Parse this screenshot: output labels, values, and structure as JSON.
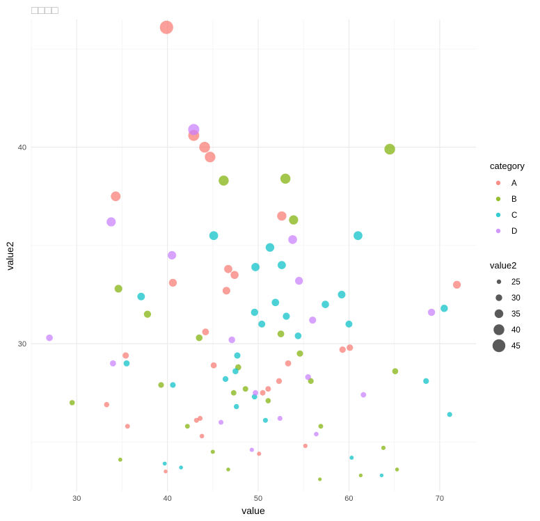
{
  "chart_data": {
    "type": "scatter",
    "title": "□□□□",
    "xlabel": "value",
    "ylabel": "value2",
    "xlim": [
      25,
      74
    ],
    "ylim": [
      22.5,
      46.5
    ],
    "x_ticks": [
      30,
      40,
      50,
      60,
      70
    ],
    "y_ticks": [
      30,
      40
    ],
    "grid": true,
    "legend_position": "right",
    "colors": {
      "A": "#F8766D",
      "B": "#7CAE00",
      "C": "#00BFC4",
      "D": "#C77CFF"
    },
    "color_legend": {
      "title": "category",
      "entries": [
        "A",
        "B",
        "C",
        "D"
      ]
    },
    "size_legend": {
      "title": "value2",
      "entries": [
        25,
        30,
        35,
        40,
        45
      ]
    },
    "series": [
      {
        "name": "A",
        "points": [
          {
            "x": 39.9,
            "y": 46.1
          },
          {
            "x": 42.9,
            "y": 40.6
          },
          {
            "x": 44.1,
            "y": 40.0
          },
          {
            "x": 44.7,
            "y": 39.5
          },
          {
            "x": 34.3,
            "y": 37.5
          },
          {
            "x": 52.6,
            "y": 36.5
          },
          {
            "x": 46.7,
            "y": 33.8
          },
          {
            "x": 47.4,
            "y": 33.5
          },
          {
            "x": 40.6,
            "y": 33.1
          },
          {
            "x": 46.5,
            "y": 32.7
          },
          {
            "x": 71.9,
            "y": 33.0
          },
          {
            "x": 44.2,
            "y": 30.6
          },
          {
            "x": 35.4,
            "y": 29.4
          },
          {
            "x": 45.1,
            "y": 28.9
          },
          {
            "x": 53.3,
            "y": 29.0
          },
          {
            "x": 59.3,
            "y": 29.7
          },
          {
            "x": 60.1,
            "y": 29.8
          },
          {
            "x": 52.3,
            "y": 28.1
          },
          {
            "x": 51.1,
            "y": 27.7
          },
          {
            "x": 50.5,
            "y": 27.5
          },
          {
            "x": 33.3,
            "y": 26.9
          },
          {
            "x": 43.2,
            "y": 26.1
          },
          {
            "x": 43.6,
            "y": 26.2
          },
          {
            "x": 35.6,
            "y": 25.8
          },
          {
            "x": 43.8,
            "y": 25.3
          },
          {
            "x": 55.2,
            "y": 24.8
          },
          {
            "x": 50.1,
            "y": 24.4
          },
          {
            "x": 39.8,
            "y": 23.5
          }
        ]
      },
      {
        "name": "B",
        "points": [
          {
            "x": 64.5,
            "y": 39.9
          },
          {
            "x": 46.2,
            "y": 38.3
          },
          {
            "x": 53.0,
            "y": 38.4
          },
          {
            "x": 53.9,
            "y": 36.3
          },
          {
            "x": 34.6,
            "y": 32.8
          },
          {
            "x": 37.8,
            "y": 31.5
          },
          {
            "x": 43.5,
            "y": 30.3
          },
          {
            "x": 52.5,
            "y": 30.5
          },
          {
            "x": 54.6,
            "y": 29.5
          },
          {
            "x": 47.8,
            "y": 28.8
          },
          {
            "x": 65.1,
            "y": 28.6
          },
          {
            "x": 39.3,
            "y": 27.9
          },
          {
            "x": 55.8,
            "y": 28.1
          },
          {
            "x": 48.6,
            "y": 27.7
          },
          {
            "x": 47.3,
            "y": 27.5
          },
          {
            "x": 51.1,
            "y": 27.1
          },
          {
            "x": 29.5,
            "y": 27.0
          },
          {
            "x": 42.2,
            "y": 25.8
          },
          {
            "x": 56.9,
            "y": 25.8
          },
          {
            "x": 63.8,
            "y": 24.7
          },
          {
            "x": 45.0,
            "y": 24.5
          },
          {
            "x": 34.8,
            "y": 24.1
          },
          {
            "x": 46.7,
            "y": 23.6
          },
          {
            "x": 65.3,
            "y": 23.6
          },
          {
            "x": 61.3,
            "y": 23.3
          },
          {
            "x": 56.8,
            "y": 23.1
          }
        ]
      },
      {
        "name": "C",
        "points": [
          {
            "x": 45.1,
            "y": 35.5
          },
          {
            "x": 61.0,
            "y": 35.5
          },
          {
            "x": 51.3,
            "y": 34.9
          },
          {
            "x": 49.7,
            "y": 33.9
          },
          {
            "x": 52.6,
            "y": 34.0
          },
          {
            "x": 37.1,
            "y": 32.4
          },
          {
            "x": 59.2,
            "y": 32.5
          },
          {
            "x": 57.4,
            "y": 32.0
          },
          {
            "x": 51.9,
            "y": 32.1
          },
          {
            "x": 70.5,
            "y": 31.8
          },
          {
            "x": 49.6,
            "y": 31.6
          },
          {
            "x": 53.1,
            "y": 31.4
          },
          {
            "x": 50.4,
            "y": 31.0
          },
          {
            "x": 60.0,
            "y": 31.0
          },
          {
            "x": 54.4,
            "y": 30.4
          },
          {
            "x": 47.7,
            "y": 29.4
          },
          {
            "x": 35.5,
            "y": 29.0
          },
          {
            "x": 47.5,
            "y": 28.6
          },
          {
            "x": 46.4,
            "y": 28.2
          },
          {
            "x": 68.5,
            "y": 28.1
          },
          {
            "x": 40.6,
            "y": 27.9
          },
          {
            "x": 49.6,
            "y": 27.3
          },
          {
            "x": 47.6,
            "y": 26.8
          },
          {
            "x": 71.1,
            "y": 26.4
          },
          {
            "x": 50.8,
            "y": 26.1
          },
          {
            "x": 60.3,
            "y": 24.2
          },
          {
            "x": 39.7,
            "y": 23.9
          },
          {
            "x": 41.5,
            "y": 23.7
          },
          {
            "x": 63.6,
            "y": 23.3
          }
        ]
      },
      {
        "name": "D",
        "points": [
          {
            "x": 42.9,
            "y": 40.9
          },
          {
            "x": 33.8,
            "y": 36.2
          },
          {
            "x": 53.8,
            "y": 35.3
          },
          {
            "x": 40.5,
            "y": 34.5
          },
          {
            "x": 54.5,
            "y": 33.2
          },
          {
            "x": 56.0,
            "y": 31.2
          },
          {
            "x": 69.1,
            "y": 31.6
          },
          {
            "x": 27.0,
            "y": 30.3
          },
          {
            "x": 47.1,
            "y": 30.2
          },
          {
            "x": 34.0,
            "y": 29.0
          },
          {
            "x": 55.5,
            "y": 28.3
          },
          {
            "x": 49.7,
            "y": 27.5
          },
          {
            "x": 61.6,
            "y": 27.4
          },
          {
            "x": 45.9,
            "y": 26.0
          },
          {
            "x": 52.4,
            "y": 26.2
          },
          {
            "x": 56.4,
            "y": 25.4
          },
          {
            "x": 49.3,
            "y": 24.6
          }
        ]
      }
    ]
  }
}
